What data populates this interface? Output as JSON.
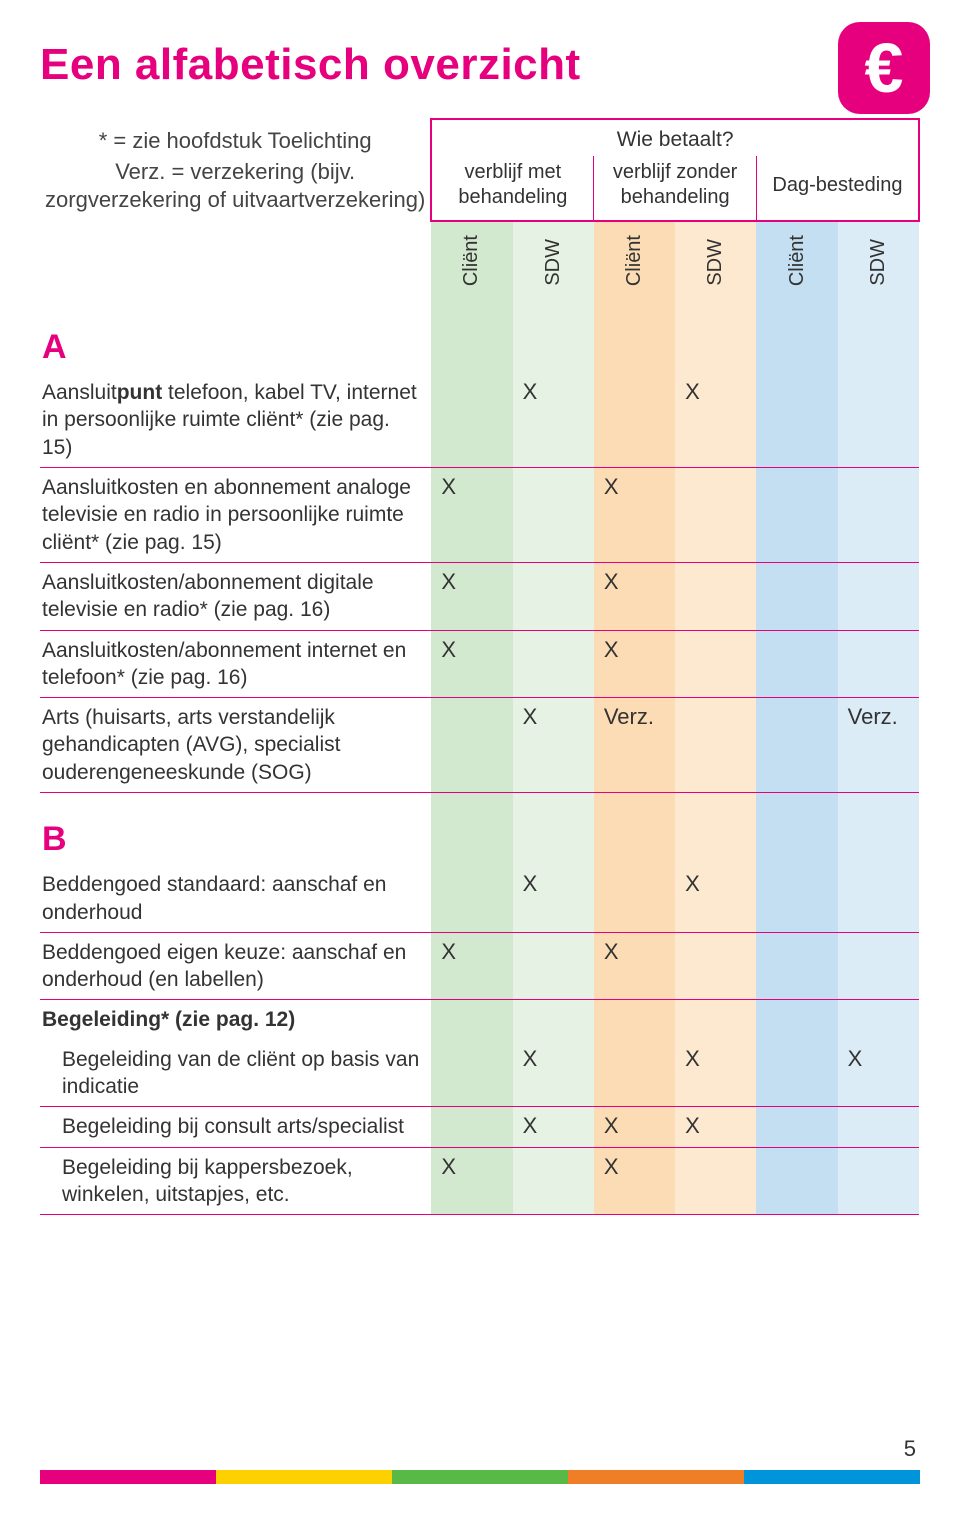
{
  "title": "Een alfabetisch overzicht",
  "title_color": "#e6007e",
  "euro_badge": {
    "symbol": "€",
    "bg": "#e6007e"
  },
  "legend": {
    "l1": "* = zie hoofdstuk Toelichting",
    "l2": "Verz. = verzekering (bijv. zorgverzekering of uitvaartverzekering)"
  },
  "header": {
    "wie": "Wie betaalt?",
    "groups": [
      "verblijf met behandeling",
      "verblijf zonder behandeling",
      "Dag-besteding"
    ],
    "sub_labels": [
      "Cliënt",
      "SDW",
      "Cliënt",
      "SDW",
      "Cliënt",
      "SDW"
    ]
  },
  "col_bg": [
    "#d2e9cf",
    "#e6f2e3",
    "#fbdcb4",
    "#fde9cf",
    "#c4dff2",
    "#dcecf7"
  ],
  "rule_color": "#e6007e",
  "sections": [
    {
      "letter": "A",
      "letter_color": "#e6007e",
      "rows": [
        {
          "desc": "Aansluit<b>punt</b> telefoon, kabel TV, internet in persoonlijke ruimte cliënt* (zie pag. 15)",
          "cells": [
            "",
            "X",
            "",
            "X",
            "",
            ""
          ]
        },
        {
          "desc": "Aansluitkosten en abonnement analoge televisie en radio in persoonlijke ruimte cliënt* (zie pag. 15)",
          "cells": [
            "X",
            "",
            "X",
            "",
            "",
            ""
          ]
        },
        {
          "desc": "Aansluitkosten/abonnement digitale televisie en radio* (zie pag. 16)",
          "cells": [
            "X",
            "",
            "X",
            "",
            "",
            ""
          ]
        },
        {
          "desc": "Aansluitkosten/abonnement internet en telefoon* (zie pag. 16)",
          "cells": [
            "X",
            "",
            "X",
            "",
            "",
            ""
          ]
        },
        {
          "desc": "Arts (huisarts, arts verstandelijk gehandicapten (AVG), specialist ouderengeneeskunde (SOG)",
          "cells": [
            "",
            "X",
            "Verz.",
            "",
            "",
            "Verz."
          ]
        }
      ]
    },
    {
      "letter": "B",
      "letter_color": "#e6007e",
      "rows": [
        {
          "desc": "Beddengoed standaard: aanschaf en onderhoud",
          "cells": [
            "",
            "X",
            "",
            "X",
            "",
            ""
          ]
        },
        {
          "desc": "Beddengoed eigen keuze: aanschaf en onderhoud (en labellen)",
          "cells": [
            "X",
            "",
            "X",
            "",
            "",
            ""
          ]
        },
        {
          "desc": "<b>Begeleiding* (zie pag. 12)</b>",
          "cells": [
            "",
            "",
            "",
            "",
            "",
            ""
          ],
          "no_rule": true,
          "bold": true
        },
        {
          "desc": "Begeleiding van de cliënt op basis van indicatie",
          "cells": [
            "",
            "X",
            "",
            "X",
            "",
            "X"
          ],
          "indent": true
        },
        {
          "desc": "Begeleiding bij consult arts/specialist",
          "cells": [
            "",
            "X",
            "X",
            "X",
            "",
            ""
          ],
          "indent": true
        },
        {
          "desc": "Begeleiding bij kappersbezoek, winkelen, uitstapjes, etc.",
          "cells": [
            "X",
            "",
            "X",
            "",
            "",
            ""
          ],
          "indent": true
        }
      ]
    }
  ],
  "footer_stripe": [
    "#e6007e",
    "#fdd100",
    "#58b947",
    "#f07e26",
    "#0095da"
  ],
  "page_number": "5"
}
